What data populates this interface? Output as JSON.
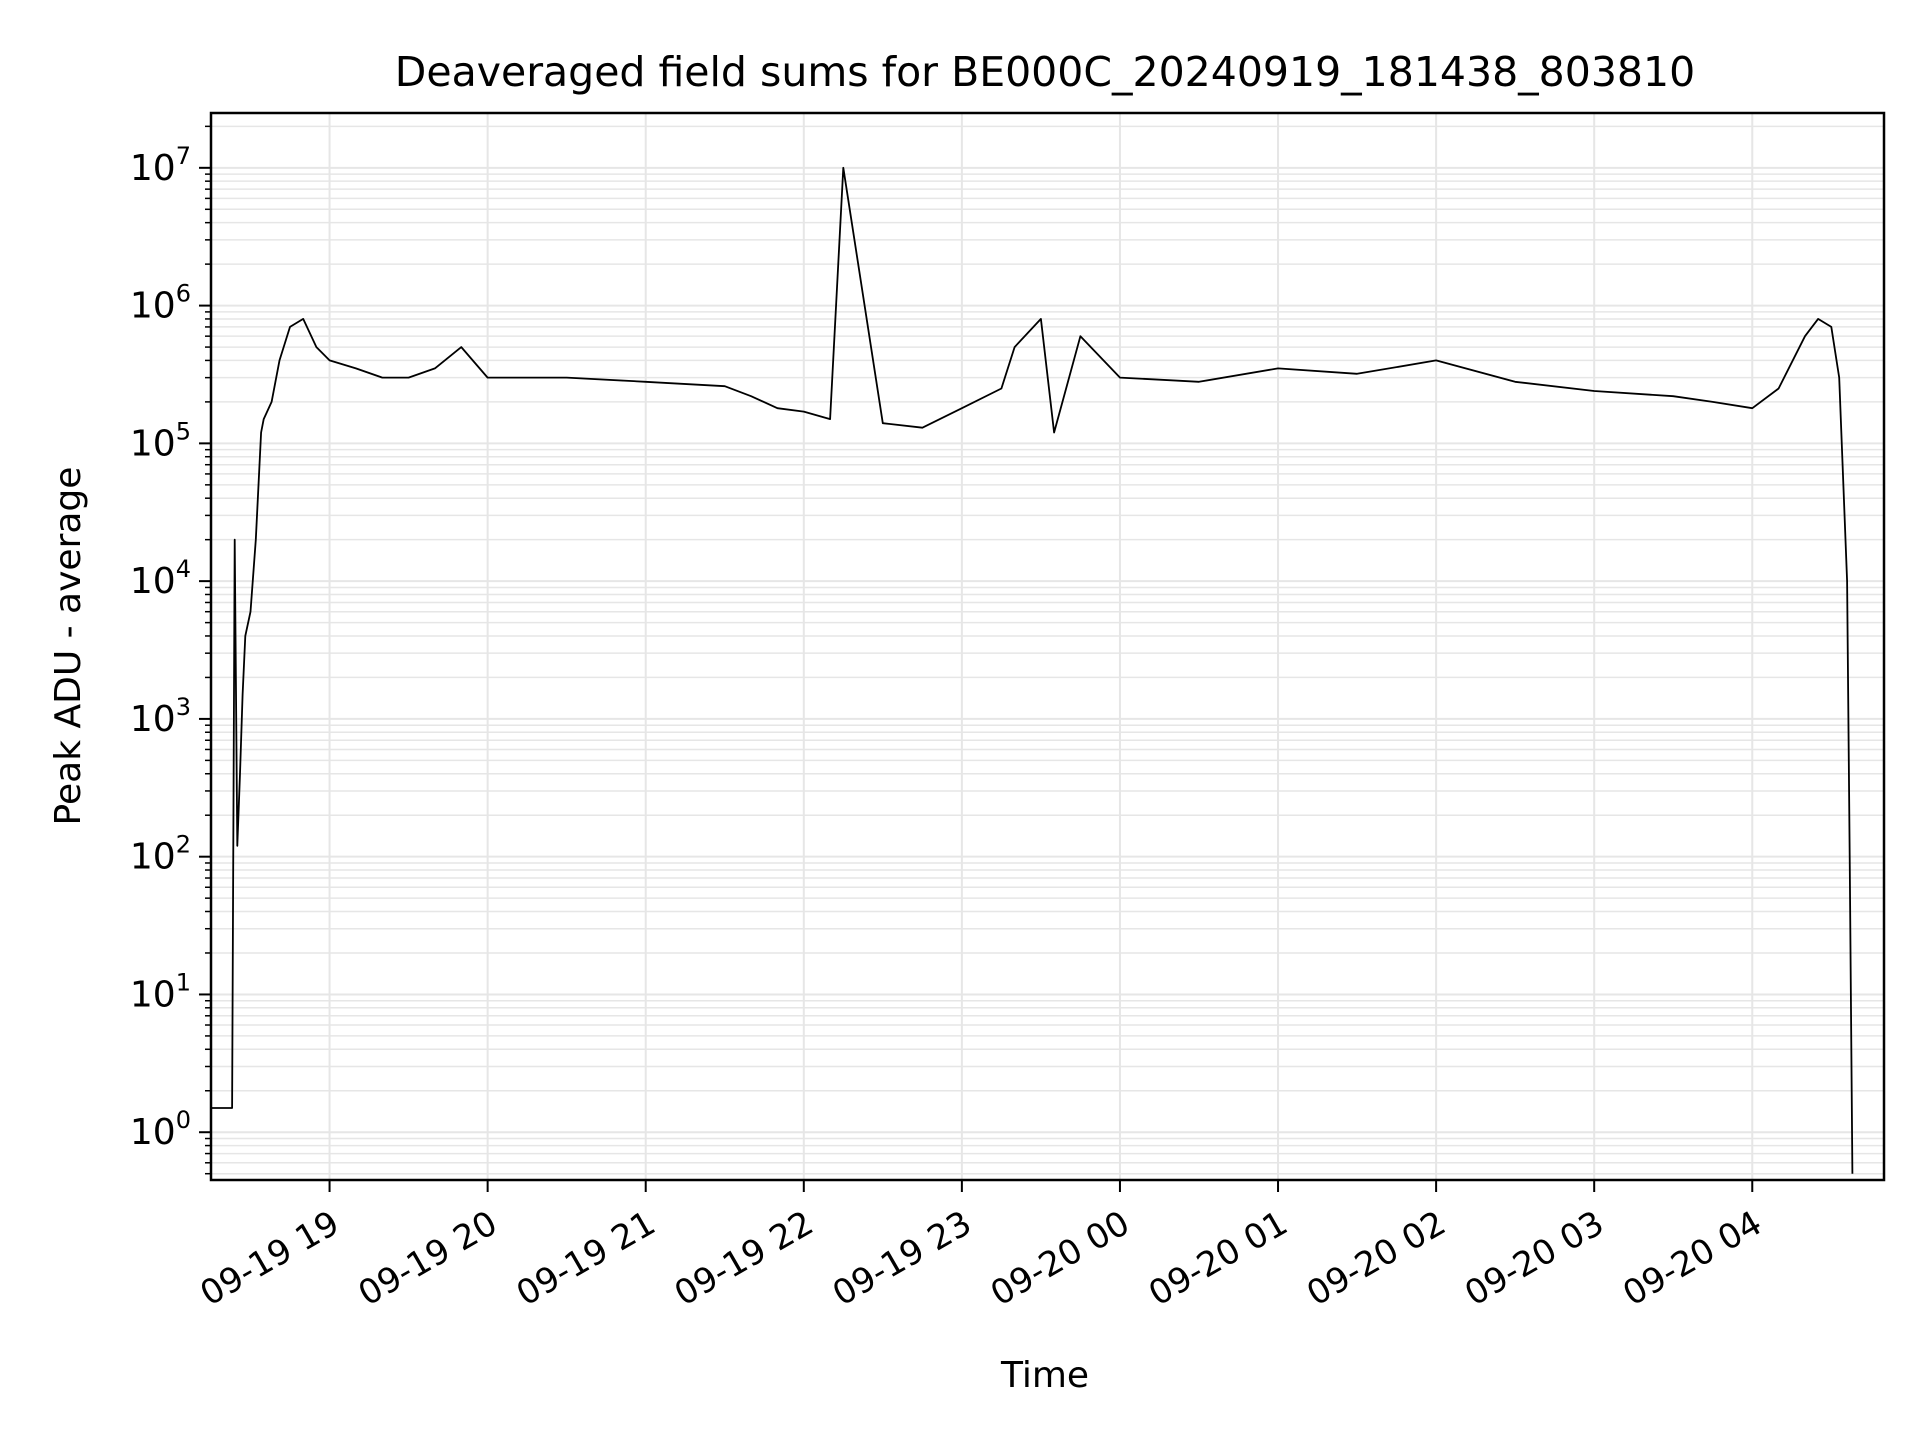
{
  "chart_data": {
    "type": "line",
    "title": "Deaveraged field sums for BE000C_20240919_181438_803810",
    "xlabel": "Time",
    "ylabel": "Peak ADU - average",
    "yscale": "log",
    "ylim": [
      0.45,
      25000000
    ],
    "xlim": [
      "2024-09-19 18:15",
      "2024-09-20 04:50"
    ],
    "grid": true,
    "line_color": "#000000",
    "grid_color": "#e6e6e6",
    "x_ticks": [
      "09-19 19",
      "09-19 20",
      "09-19 21",
      "09-19 22",
      "09-19 23",
      "09-20 00",
      "09-20 01",
      "09-20 02",
      "09-20 03",
      "09-20 04"
    ],
    "x_tick_times": [
      "2024-09-19 19:00",
      "2024-09-19 20:00",
      "2024-09-19 21:00",
      "2024-09-19 22:00",
      "2024-09-19 23:00",
      "2024-09-20 00:00",
      "2024-09-20 01:00",
      "2024-09-20 02:00",
      "2024-09-20 03:00",
      "2024-09-20 04:00"
    ],
    "y_ticks": [
      {
        "base": "10",
        "exp": "0",
        "value": 1
      },
      {
        "base": "10",
        "exp": "1",
        "value": 10
      },
      {
        "base": "10",
        "exp": "2",
        "value": 100
      },
      {
        "base": "10",
        "exp": "3",
        "value": 1000
      },
      {
        "base": "10",
        "exp": "4",
        "value": 10000
      },
      {
        "base": "10",
        "exp": "5",
        "value": 100000
      },
      {
        "base": "10",
        "exp": "6",
        "value": 1000000
      },
      {
        "base": "10",
        "exp": "7",
        "value": 10000000
      }
    ],
    "series": [
      {
        "x": [
          "2024-09-19 18:15",
          "2024-09-19 18:23",
          "2024-09-19 18:24",
          "2024-09-19 18:25",
          "2024-09-19 18:26",
          "2024-09-19 18:27",
          "2024-09-19 18:28",
          "2024-09-19 18:30",
          "2024-09-19 18:32",
          "2024-09-19 18:34",
          "2024-09-19 18:35",
          "2024-09-19 18:38",
          "2024-09-19 18:41",
          "2024-09-19 18:45",
          "2024-09-19 18:50",
          "2024-09-19 18:55",
          "2024-09-19 19:00",
          "2024-09-19 19:10",
          "2024-09-19 19:20",
          "2024-09-19 19:30",
          "2024-09-19 19:40",
          "2024-09-19 19:50",
          "2024-09-19 20:00",
          "2024-09-19 20:30",
          "2024-09-19 21:00",
          "2024-09-19 21:30",
          "2024-09-19 21:40",
          "2024-09-19 21:50",
          "2024-09-19 22:00",
          "2024-09-19 22:10",
          "2024-09-19 22:15",
          "2024-09-19 22:30",
          "2024-09-19 22:45",
          "2024-09-19 23:00",
          "2024-09-19 23:15",
          "2024-09-19 23:20",
          "2024-09-19 23:30",
          "2024-09-19 23:35",
          "2024-09-19 23:45",
          "2024-09-20 00:00",
          "2024-09-20 00:30",
          "2024-09-20 01:00",
          "2024-09-20 01:30",
          "2024-09-20 02:00",
          "2024-09-20 02:30",
          "2024-09-20 03:00",
          "2024-09-20 03:30",
          "2024-09-20 03:45",
          "2024-09-20 04:00",
          "2024-09-20 04:10",
          "2024-09-20 04:20",
          "2024-09-20 04:25",
          "2024-09-20 04:30",
          "2024-09-20 04:33",
          "2024-09-20 04:36",
          "2024-09-20 04:37",
          "2024-09-20 04:38"
        ],
        "values": [
          1.5,
          1.5,
          20000,
          120,
          400,
          1500,
          4000,
          6000,
          20000,
          120000,
          150000,
          200000,
          400000,
          700000,
          800000,
          500000,
          400000,
          350000,
          300000,
          300000,
          350000,
          500000,
          300000,
          300000,
          280000,
          260000,
          220000,
          180000,
          170000,
          150000,
          10000000,
          140000,
          130000,
          180000,
          250000,
          500000,
          800000,
          120000,
          600000,
          300000,
          280000,
          350000,
          320000,
          400000,
          280000,
          240000,
          220000,
          200000,
          180000,
          250000,
          600000,
          800000,
          700000,
          300000,
          10000,
          100,
          0.5
        ]
      }
    ]
  }
}
